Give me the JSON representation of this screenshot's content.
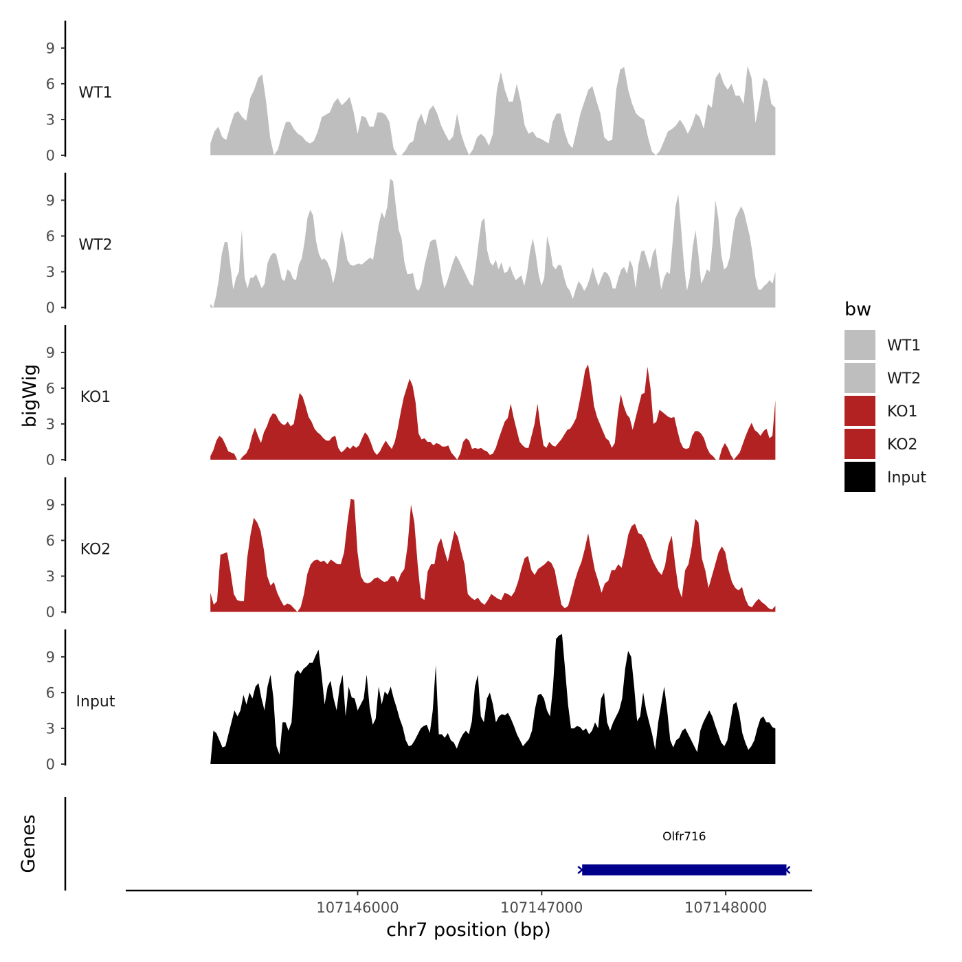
{
  "chart_data": {
    "type": "area",
    "ylabel": "bigWig",
    "xlabel": "chr7 position (bp)",
    "xlim": [
      107144740,
      107148470
    ],
    "x_ticks": [
      {
        "value": 107146000,
        "label": "107146000"
      },
      {
        "value": 107147000,
        "label": "107147000"
      },
      {
        "value": 107148000,
        "label": "107148000"
      }
    ],
    "y_ticks": [
      {
        "value": 0,
        "label": "0"
      },
      {
        "value": 3,
        "label": "3"
      },
      {
        "value": 6,
        "label": "6"
      },
      {
        "value": 9,
        "label": "9"
      }
    ],
    "ylim": [
      0,
      11.3
    ],
    "track_x_range": [
      107145200,
      107148270
    ],
    "legend": {
      "title": "bw",
      "entries": [
        {
          "label": "WT1",
          "color": "#bebebe"
        },
        {
          "label": "WT2",
          "color": "#bebebe"
        },
        {
          "label": "KO1",
          "color": "#b22222"
        },
        {
          "label": "KO2",
          "color": "#b22222"
        },
        {
          "label": "Input",
          "color": "#000000"
        }
      ]
    },
    "series": [
      {
        "name": "WT1",
        "color": "#bebebe",
        "values": [
          1.0,
          2.0,
          2.4,
          1.5,
          1.3,
          2.5,
          3.5,
          3.7,
          3.2,
          2.9,
          4.8,
          5.5,
          6.5,
          6.8,
          4.5,
          1.5,
          0,
          0.5,
          1.8,
          2.8,
          2.8,
          2.2,
          1.8,
          1.6,
          1.2,
          1.0,
          1.2,
          2.0,
          3.2,
          3.4,
          3.6,
          4.4,
          4.8,
          4.2,
          4.5,
          4.9,
          3.6,
          1.8,
          3.3,
          3.2,
          2.4,
          2.4,
          3.6,
          3.6,
          3.4,
          2.8,
          0.6,
          0,
          0,
          0.4,
          1.0,
          1.2,
          2.8,
          3.5,
          2.5,
          3.8,
          4.2,
          3.5,
          2.5,
          1.8,
          1.2,
          1.6,
          3.5,
          1.8,
          0.8,
          0,
          0.5,
          1.5,
          1.8,
          1.5,
          0.8,
          1.8,
          5.5,
          7.0,
          5.5,
          4.5,
          4.5,
          6.0,
          4.5,
          2.5,
          1.8,
          2.0,
          1.5,
          1.4,
          1.2,
          1.0,
          2.8,
          3.5,
          3.5,
          2.0,
          1.0,
          0.6,
          2.0,
          3.5,
          4.5,
          5.5,
          5.8,
          4.6,
          3.5,
          1.5,
          1.2,
          1.3,
          5.5,
          7.2,
          7.4,
          5.5,
          4.3,
          3.5,
          3.2,
          3.0,
          1.5,
          0.3,
          0,
          0.4,
          1.2,
          2.0,
          2.2,
          2.5,
          3.0,
          2.5,
          1.8,
          2.5,
          3.5,
          3.2,
          2.2,
          4.3,
          4.0,
          6.5,
          7.0,
          6.0,
          5.5,
          6.0,
          5.0,
          5.0,
          4.3,
          7.5,
          6.5,
          2.7,
          4.5,
          6.5,
          6.2,
          4.3,
          4.0
        ]
      },
      {
        "name": "WT2",
        "color": "#bebebe",
        "values": [
          0.3,
          0,
          1.0,
          2.5,
          4.5,
          5.5,
          5.5,
          3.5,
          1.5,
          2.5,
          3.0,
          6.5,
          2.5,
          1.6,
          2.5,
          2.5,
          2.8,
          2.2,
          1.6,
          2.0,
          3.7,
          4.3,
          4.6,
          4.5,
          3.5,
          2.4,
          2.2,
          3.2,
          3.0,
          2.4,
          2.3,
          3.6,
          4.1,
          5.5,
          7.5,
          8.2,
          7.7,
          5.6,
          4.5,
          4.0,
          4.1,
          3.8,
          3.2,
          2.0,
          3.0,
          5.0,
          6.5,
          5.5,
          4.0,
          3.6,
          3.5,
          3.6,
          3.7,
          3.6,
          3.8,
          4.0,
          4.2,
          4.0,
          5.5,
          7.0,
          8.0,
          7.5,
          8.5,
          10.8,
          10.6,
          8.5,
          6.5,
          5.8,
          3.8,
          2.8,
          2.8,
          2.9,
          1.6,
          1.4,
          2.0,
          3.5,
          4.5,
          5.5,
          5.7,
          5.7,
          4.4,
          2.7,
          1.6,
          2.2,
          3.0,
          3.8,
          4.4,
          4.0,
          3.5,
          3.0,
          2.5,
          2.0,
          1.8,
          3.5,
          5.5,
          7.2,
          7.5,
          4.8,
          3.8,
          3.5,
          4.0,
          3.2,
          3.8,
          2.9,
          3.0,
          3.5,
          2.8,
          2.3,
          2.5,
          2.7,
          1.8,
          3.0,
          4.7,
          5.8,
          4.5,
          2.8,
          1.8,
          2.5,
          6.0,
          5.0,
          3.5,
          3.2,
          3.6,
          3.5,
          2.5,
          1.7,
          1.4,
          0.7,
          1.5,
          2.2,
          1.9,
          1.4,
          1.8,
          2.5,
          3.4,
          2.5,
          1.8,
          2.5,
          3.0,
          2.9,
          2.5,
          1.6,
          1.6,
          2.5,
          3.2,
          3.4,
          2.8,
          4.0,
          3.4,
          1.6,
          3.6,
          4.7,
          4.8,
          4.0,
          3.2,
          4.5,
          5.0,
          3.2,
          1.5,
          2.5,
          3.0,
          2.8,
          5.5,
          8.5,
          9.5,
          6.5,
          3.5,
          1.4,
          2.5,
          5.0,
          6.5,
          4.5,
          2.0,
          2.5,
          3.2,
          3.0,
          5.5,
          9.0,
          7.5,
          4.5,
          3.2,
          3.4,
          4.2,
          6.0,
          7.5,
          8.0,
          8.5,
          8.0,
          7.0,
          6.0,
          4.5,
          2.5,
          1.5,
          1.5,
          1.8,
          2.0,
          2.3,
          2.0,
          3.0
        ]
      },
      {
        "name": "KO1",
        "color": "#b22222",
        "values": [
          0.3,
          0.8,
          1.6,
          2.0,
          1.8,
          1.3,
          0.7,
          0.6,
          0.5,
          0,
          0,
          0.3,
          0.5,
          1.0,
          2.0,
          2.7,
          2.0,
          1.4,
          2.3,
          2.8,
          3.5,
          3.9,
          3.8,
          3.3,
          3.0,
          2.9,
          3.2,
          2.8,
          3.0,
          4.3,
          5.6,
          5.3,
          4.5,
          3.6,
          3.2,
          2.6,
          2.3,
          2.1,
          1.8,
          1.6,
          1.6,
          1.9,
          2.0,
          1.0,
          0.6,
          0.8,
          1.1,
          0.9,
          1.2,
          1.0,
          1.2,
          1.8,
          2.3,
          2.0,
          1.4,
          0.7,
          0.4,
          0.7,
          1.2,
          1.6,
          1.2,
          0.9,
          1.5,
          2.6,
          4.0,
          5.2,
          6.0,
          6.8,
          6.2,
          4.8,
          2.2,
          1.7,
          1.8,
          1.5,
          1.5,
          1.2,
          1.4,
          1.3,
          1.1,
          1.1,
          1.2,
          0.6,
          0.3,
          0,
          0.5,
          1.5,
          1.8,
          1.6,
          0.9,
          1.0,
          0.9,
          1.0,
          0.8,
          0.7,
          0.4,
          0.5,
          1.0,
          1.8,
          2.5,
          3.2,
          3.5,
          4.7,
          3.5,
          2.5,
          1.5,
          1.2,
          1.0,
          1.0,
          2.0,
          3.0,
          4.7,
          2.8,
          1.2,
          1.0,
          1.5,
          1.2,
          1.1,
          1.4,
          1.7,
          2.1,
          2.5,
          2.6,
          3.0,
          3.5,
          4.7,
          6.0,
          7.5,
          8.0,
          6.5,
          4.5,
          3.6,
          3.0,
          2.4,
          1.8,
          1.6,
          1.0,
          1.4,
          3.8,
          5.5,
          4.5,
          3.8,
          3.5,
          2.5,
          3.5,
          4.5,
          5.5,
          5.6,
          7.8,
          6.0,
          3.0,
          3.2,
          4.2,
          4.0,
          3.8,
          3.6,
          3.5,
          3.6,
          2.5,
          1.5,
          1.0,
          0.9,
          1.0,
          2.0,
          2.4,
          2.4,
          2.2,
          1.8,
          1.0,
          0.5,
          0.3,
          0,
          0,
          0.9,
          1.4,
          1.0,
          0.4,
          0,
          0.3,
          0.6,
          1.3,
          2.0,
          2.6,
          3.1,
          2.5,
          2.3,
          2.0,
          2.4,
          2.6,
          1.8,
          2.0,
          5.0
        ]
      },
      {
        "name": "KO2",
        "color": "#b22222",
        "values": [
          1.6,
          0.6,
          0.9,
          4.8,
          4.9,
          5.0,
          3.4,
          1.5,
          1.0,
          0.9,
          0.9,
          4.5,
          6.5,
          7.9,
          7.5,
          6.8,
          5.2,
          3.0,
          2.2,
          2.5,
          1.6,
          1.0,
          0.5,
          0.7,
          0.6,
          0.3,
          0,
          0.4,
          1.5,
          3.2,
          4.0,
          4.3,
          4.4,
          4.2,
          4.3,
          4.0,
          4.4,
          4.2,
          4.0,
          4.0,
          5.0,
          7.5,
          9.5,
          9.4,
          5.0,
          3.0,
          2.5,
          2.4,
          2.5,
          2.8,
          2.9,
          2.7,
          2.5,
          2.6,
          3.0,
          3.0,
          2.5,
          3.2,
          3.6,
          5.6,
          9.0,
          7.5,
          4.0,
          1.2,
          1.0,
          3.4,
          4.0,
          4.0,
          5.6,
          6.2,
          5.1,
          4.2,
          5.5,
          6.8,
          6.3,
          5.1,
          4.0,
          1.5,
          1.2,
          1.0,
          1.2,
          0.8,
          0.6,
          1.0,
          1.5,
          1.3,
          1.1,
          1.0,
          1.6,
          1.5,
          1.3,
          1.7,
          2.5,
          3.6,
          4.5,
          4.7,
          3.5,
          3.1,
          3.6,
          3.8,
          4.0,
          4.3,
          4.1,
          3.5,
          2.0,
          0.6,
          0.3,
          0.5,
          1.5,
          2.6,
          3.5,
          4.2,
          5.3,
          6.6,
          5.0,
          3.5,
          2.6,
          1.6,
          2.4,
          2.6,
          3.5,
          3.5,
          4.0,
          3.7,
          5.0,
          6.5,
          7.2,
          7.4,
          6.6,
          6.5,
          6.0,
          5.3,
          4.5,
          3.9,
          3.4,
          3.1,
          3.9,
          5.6,
          6.4,
          4.0,
          2.0,
          1.2,
          3.5,
          4.0,
          5.5,
          7.8,
          7.5,
          4.5,
          3.5,
          2.0,
          3.0,
          4.0,
          5.0,
          5.5,
          5.0,
          3.5,
          2.5,
          2.0,
          1.8,
          2.1,
          1.1,
          0.5,
          0.4,
          0.8,
          1.1,
          0.8,
          0.6,
          0.3,
          0.2,
          0.5
        ]
      },
      {
        "name": "Input",
        "color": "#000000",
        "values": [
          0,
          2.8,
          2.6,
          2.0,
          1.4,
          1.5,
          2.5,
          3.5,
          4.5,
          4.0,
          4.5,
          5.8,
          5.0,
          6.0,
          5.5,
          6.5,
          6.8,
          5.5,
          4.5,
          6.5,
          7.5,
          5.5,
          1.5,
          0.8,
          3.5,
          3.5,
          2.8,
          3.5,
          7.5,
          7.9,
          7.6,
          8.0,
          8.2,
          8.5,
          8.5,
          9.1,
          9.6,
          7.5,
          5.0,
          6.5,
          7.0,
          5.5,
          4.5,
          6.5,
          7.5,
          4.0,
          6.5,
          5.6,
          5.5,
          4.5,
          5.0,
          5.5,
          7.5,
          4.7,
          3.3,
          3.8,
          6.5,
          5.0,
          6.1,
          5.8,
          6.5,
          5.5,
          4.7,
          3.8,
          3.1,
          2.0,
          1.5,
          1.6,
          2.0,
          2.5,
          3.0,
          3.2,
          3.3,
          2.6,
          4.5,
          8.3,
          2.5,
          2.5,
          2.2,
          2.6,
          2.0,
          1.8,
          1.3,
          2.0,
          2.5,
          2.8,
          2.5,
          3.6,
          6.5,
          7.5,
          4.0,
          3.5,
          5.5,
          6.0,
          5.0,
          3.5,
          4.0,
          4.2,
          4.1,
          4.3,
          3.8,
          3.2,
          2.5,
          2.0,
          1.5,
          1.8,
          2.1,
          2.8,
          4.6,
          5.8,
          5.9,
          5.5,
          4.5,
          4.0,
          6.5,
          10.5,
          10.8,
          10.9,
          8.0,
          5.0,
          3.0,
          3.0,
          3.2,
          3.1,
          2.8,
          3.0,
          2.5,
          2.8,
          3.5,
          3.0,
          5.5,
          6.0,
          3.5,
          2.8,
          3.5,
          4.0,
          4.5,
          5.5,
          8.0,
          9.5,
          9.0,
          6.5,
          3.6,
          4.0,
          6.0,
          4.5,
          3.5,
          2.5,
          1.2,
          3.5,
          5.0,
          6.5,
          4.5,
          2.0,
          1.4,
          2.0,
          2.2,
          2.8,
          3.0,
          2.5,
          2.0,
          1.5,
          1.0,
          2.8,
          3.5,
          4.0,
          4.5,
          4.0,
          3.2,
          2.5,
          1.8,
          1.5,
          2.0,
          3.5,
          5.0,
          5.2,
          4.2,
          2.6,
          1.8,
          1.2,
          1.5,
          2.0,
          3.0,
          3.8,
          4.0,
          3.5,
          3.5,
          3.1,
          3.0
        ]
      }
    ],
    "genes": [
      {
        "name": "Olfr716",
        "start": 107147220,
        "end": 107148330,
        "strand": "-",
        "color": "#00008b"
      }
    ]
  }
}
